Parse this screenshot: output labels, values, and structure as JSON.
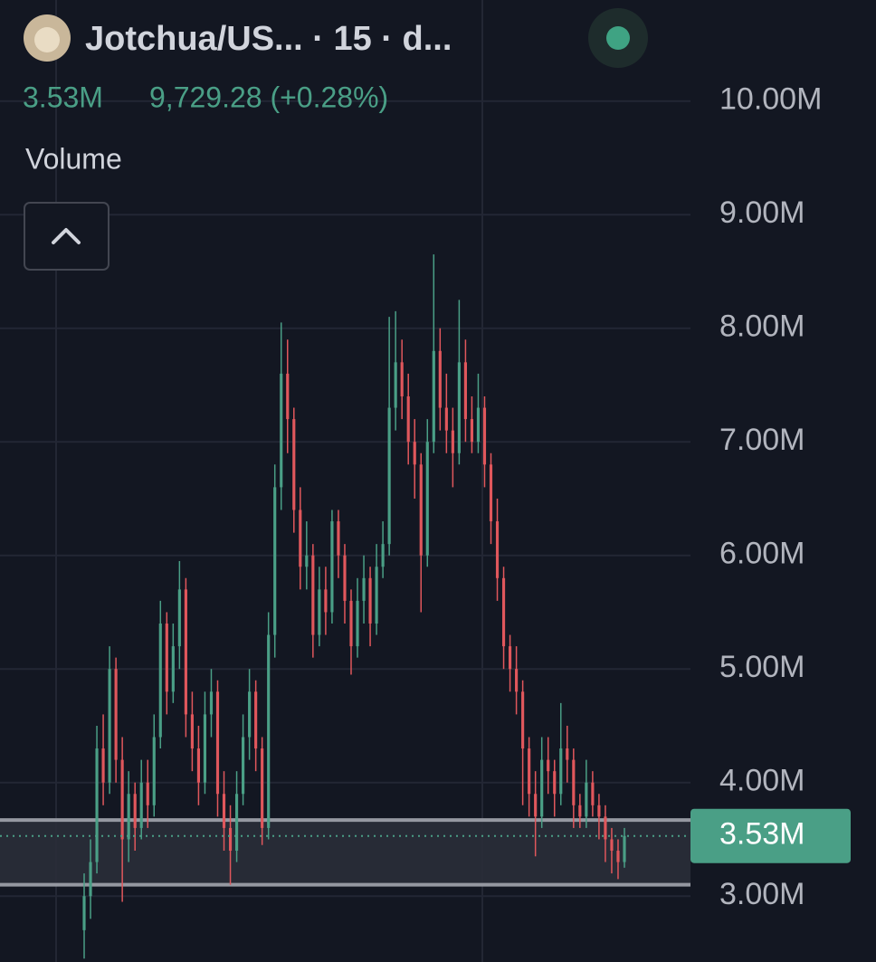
{
  "chart_data": {
    "type": "candlestick",
    "title": "Jotchua/US... · 15 · d...",
    "volume_value": "3.53M",
    "price_change": "9,729.28 (+0.28%)",
    "indicator": "Volume",
    "ylim": [
      2.42,
      10.89
    ],
    "yticks": [
      {
        "value": 3,
        "label": "3.00M"
      },
      {
        "value": 4,
        "label": "4.00M"
      },
      {
        "value": 5,
        "label": "5.00M"
      },
      {
        "value": 6,
        "label": "6.00M"
      },
      {
        "value": 7,
        "label": "7.00M"
      },
      {
        "value": 8,
        "label": "8.00M"
      },
      {
        "value": 9,
        "label": "9.00M"
      },
      {
        "value": 10,
        "label": "10.00M"
      }
    ],
    "grid": true,
    "up_color": "#4a9f86",
    "down_color": "#e0575c",
    "last_price": {
      "value": 3.53,
      "label": "3.53M"
    },
    "zone": [
      3.1,
      3.67
    ],
    "ohlc": [
      [
        2.7,
        3.2,
        2.45,
        3.0
      ],
      [
        3.0,
        3.5,
        2.8,
        3.3
      ],
      [
        3.3,
        4.5,
        3.2,
        4.3
      ],
      [
        4.3,
        4.6,
        3.8,
        4.0
      ],
      [
        4.0,
        5.2,
        3.9,
        5.0
      ],
      [
        5.0,
        5.1,
        4.0,
        4.2
      ],
      [
        4.2,
        4.4,
        2.95,
        3.5
      ],
      [
        3.5,
        4.1,
        3.3,
        3.9
      ],
      [
        3.9,
        4.0,
        3.4,
        3.6
      ],
      [
        3.6,
        4.2,
        3.5,
        4.0
      ],
      [
        4.0,
        4.2,
        3.6,
        3.8
      ],
      [
        3.8,
        4.6,
        3.7,
        4.4
      ],
      [
        4.4,
        5.6,
        4.3,
        5.4
      ],
      [
        5.4,
        5.5,
        4.6,
        4.8
      ],
      [
        4.8,
        5.4,
        4.7,
        5.2
      ],
      [
        5.2,
        5.95,
        5.0,
        5.7
      ],
      [
        5.7,
        5.8,
        4.4,
        4.6
      ],
      [
        4.6,
        4.8,
        4.1,
        4.3
      ],
      [
        4.3,
        4.5,
        3.8,
        4.0
      ],
      [
        4.0,
        4.8,
        3.9,
        4.6
      ],
      [
        4.6,
        5.0,
        4.4,
        4.8
      ],
      [
        4.8,
        4.9,
        3.7,
        3.9
      ],
      [
        3.9,
        4.1,
        3.4,
        3.6
      ],
      [
        3.6,
        3.8,
        3.1,
        3.4
      ],
      [
        3.4,
        4.1,
        3.3,
        3.9
      ],
      [
        3.9,
        4.6,
        3.8,
        4.4
      ],
      [
        4.4,
        5.0,
        4.2,
        4.8
      ],
      [
        4.8,
        4.9,
        4.1,
        4.3
      ],
      [
        4.3,
        4.4,
        3.45,
        3.6
      ],
      [
        3.6,
        5.5,
        3.5,
        5.3
      ],
      [
        5.3,
        6.8,
        5.1,
        6.6
      ],
      [
        6.6,
        8.05,
        6.4,
        7.6
      ],
      [
        7.6,
        7.9,
        6.9,
        7.2
      ],
      [
        7.2,
        7.3,
        6.2,
        6.4
      ],
      [
        6.4,
        6.6,
        5.7,
        5.9
      ],
      [
        5.9,
        6.3,
        5.7,
        6.0
      ],
      [
        6.0,
        6.1,
        5.1,
        5.3
      ],
      [
        5.3,
        5.9,
        5.2,
        5.7
      ],
      [
        5.7,
        5.9,
        5.3,
        5.5
      ],
      [
        5.5,
        6.4,
        5.4,
        6.3
      ],
      [
        6.3,
        6.4,
        5.8,
        6.0
      ],
      [
        6.0,
        6.1,
        5.4,
        5.6
      ],
      [
        5.6,
        5.7,
        4.95,
        5.2
      ],
      [
        5.2,
        5.8,
        5.1,
        5.6
      ],
      [
        5.6,
        6.0,
        5.4,
        5.8
      ],
      [
        5.8,
        5.9,
        5.2,
        5.4
      ],
      [
        5.4,
        6.1,
        5.3,
        5.9
      ],
      [
        5.9,
        6.3,
        5.8,
        6.1
      ],
      [
        6.1,
        8.1,
        6.0,
        7.3
      ],
      [
        7.3,
        8.15,
        7.1,
        7.7
      ],
      [
        7.7,
        7.9,
        7.2,
        7.4
      ],
      [
        7.4,
        7.6,
        6.8,
        7.0
      ],
      [
        7.0,
        7.2,
        6.5,
        6.8
      ],
      [
        6.8,
        6.9,
        5.5,
        6.0
      ],
      [
        6.0,
        7.2,
        5.9,
        7.0
      ],
      [
        7.0,
        8.65,
        6.9,
        7.8
      ],
      [
        7.8,
        8.0,
        7.1,
        7.3
      ],
      [
        7.3,
        7.6,
        6.9,
        7.1
      ],
      [
        7.1,
        7.3,
        6.6,
        6.9
      ],
      [
        6.9,
        8.25,
        6.8,
        7.7
      ],
      [
        7.7,
        7.9,
        7.0,
        7.2
      ],
      [
        7.2,
        7.4,
        6.9,
        7.0
      ],
      [
        7.0,
        7.6,
        6.9,
        7.3
      ],
      [
        7.3,
        7.4,
        6.6,
        6.8
      ],
      [
        6.8,
        6.9,
        6.1,
        6.3
      ],
      [
        6.3,
        6.5,
        5.6,
        5.8
      ],
      [
        5.8,
        5.9,
        5.0,
        5.2
      ],
      [
        5.2,
        5.3,
        4.8,
        5.0
      ],
      [
        5.0,
        5.2,
        4.6,
        4.8
      ],
      [
        4.8,
        4.9,
        3.8,
        4.3
      ],
      [
        4.3,
        4.4,
        3.7,
        3.9
      ],
      [
        3.9,
        4.1,
        3.35,
        3.7
      ],
      [
        3.7,
        4.4,
        3.6,
        4.2
      ],
      [
        4.2,
        4.4,
        3.9,
        4.1
      ],
      [
        4.1,
        4.2,
        3.7,
        3.9
      ],
      [
        3.9,
        4.7,
        3.8,
        4.3
      ],
      [
        4.3,
        4.5,
        4.0,
        4.2
      ],
      [
        4.2,
        4.3,
        3.6,
        3.8
      ],
      [
        3.8,
        3.9,
        3.6,
        3.7
      ],
      [
        3.7,
        4.2,
        3.6,
        4.0
      ],
      [
        4.0,
        4.1,
        3.7,
        3.8
      ],
      [
        3.8,
        3.9,
        3.5,
        3.7
      ],
      [
        3.7,
        3.8,
        3.3,
        3.5
      ],
      [
        3.5,
        3.6,
        3.2,
        3.4
      ],
      [
        3.4,
        3.5,
        3.15,
        3.3
      ],
      [
        3.3,
        3.6,
        3.25,
        3.53
      ]
    ]
  }
}
